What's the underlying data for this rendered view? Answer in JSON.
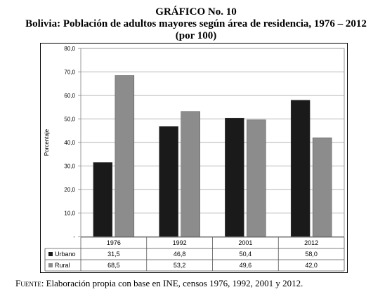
{
  "header": {
    "line1": "GRÁFICO No. 10",
    "line2": "Bolivia: Población de adultos mayores según área de residencia, 1976 – 2012",
    "line3": "(por 100)"
  },
  "chart_data": {
    "type": "bar",
    "categories": [
      "1976",
      "1992",
      "2001",
      "2012"
    ],
    "series": [
      {
        "name": "Urbano",
        "values": [
          31.5,
          46.8,
          50.4,
          58.0
        ],
        "labels": [
          "31,5",
          "46,8",
          "50,4",
          "58,0"
        ],
        "color": "#1a1a1a"
      },
      {
        "name": "Rural",
        "values": [
          68.5,
          53.2,
          49.6,
          42.0
        ],
        "labels": [
          "68,5",
          "53,2",
          "49,6",
          "42,0"
        ],
        "color": "#8c8c8c"
      }
    ],
    "ylabel": "Porcentaje",
    "ylim": [
      0,
      80
    ],
    "yticks": [
      0,
      10,
      20,
      30,
      40,
      50,
      60,
      70,
      80
    ],
    "ytick_labels": [
      "-",
      "10,0",
      "20,0",
      "30,0",
      "40,0",
      "50,0",
      "60,0",
      "70,0",
      "80,0"
    ],
    "grid": true,
    "data_table": true
  },
  "source": {
    "label": "Fuente",
    "text": ": Elaboración propia con base en INE, censos 1976, 1992, 2001 y 2012."
  }
}
